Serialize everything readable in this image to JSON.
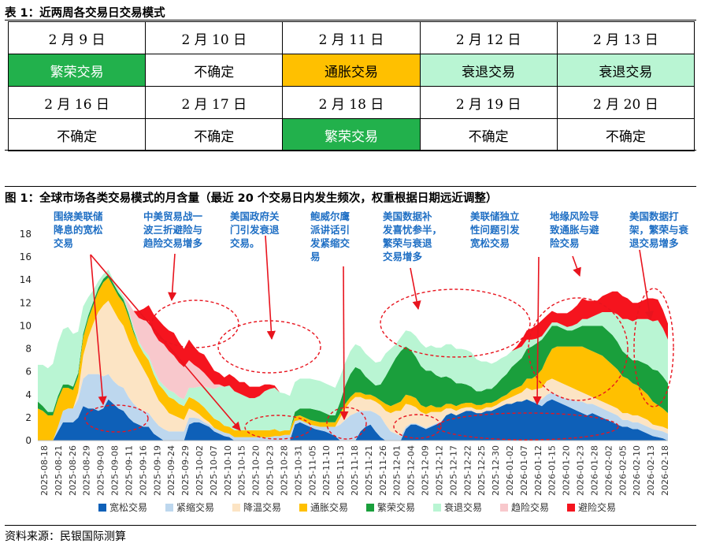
{
  "table": {
    "caption": "表 1：近两周各交易日交易模式",
    "rows": [
      [
        {
          "t": "2 月 9 日"
        },
        {
          "t": "2 月 10 日"
        },
        {
          "t": "2 月 11 日"
        },
        {
          "t": "2 月 12 日"
        },
        {
          "t": "2 月 13 日"
        }
      ],
      [
        {
          "t": "繁荣交易",
          "bg": "#22B14C",
          "fg": "#ffffff"
        },
        {
          "t": "不确定"
        },
        {
          "t": "通胀交易",
          "bg": "#FFC000"
        },
        {
          "t": "衰退交易",
          "bg": "#B9F5D3"
        },
        {
          "t": "衰退交易",
          "bg": "#B9F5D3"
        }
      ],
      [
        {
          "t": "2 月 16 日"
        },
        {
          "t": "2 月 17 日"
        },
        {
          "t": "2 月 18 日"
        },
        {
          "t": "2 月 19 日"
        },
        {
          "t": "2 月 20 日"
        }
      ],
      [
        {
          "t": "不确定"
        },
        {
          "t": "不确定"
        },
        {
          "t": "繁荣交易",
          "bg": "#22B14C",
          "fg": "#ffffff"
        },
        {
          "t": "不确定"
        },
        {
          "t": "不确定"
        }
      ]
    ]
  },
  "figure": {
    "caption": "图 1：全球市场各类交易模式的月含量（最近 20 个交易日内发生频次，权重根据日期远近调整）"
  },
  "source": "资料来源：民银国际测算",
  "chart_data": {
    "type": "area",
    "stacked": true,
    "ylim": [
      0,
      18
    ],
    "yticks": [
      0,
      2,
      4,
      6,
      8,
      10,
      12,
      14,
      16,
      18
    ],
    "x_ticks": [
      "2025-08-18",
      "2025-08-21",
      "2025-08-26",
      "2025-08-29",
      "2025-09-03",
      "2025-09-08",
      "2025-09-11",
      "2025-09-16",
      "2025-09-19",
      "2025-09-24",
      "2025-09-29",
      "2025-10-02",
      "2025-10-07",
      "2025-10-10",
      "2025-10-15",
      "2025-10-20",
      "2025-10-23",
      "2025-10-28",
      "2025-10-31",
      "2025-11-05",
      "2025-11-10",
      "2025-11-13",
      "2025-11-18",
      "2025-11-21",
      "2025-11-26",
      "2025-12-01",
      "2025-12-04",
      "2025-12-09",
      "2025-12-12",
      "2025-12-17",
      "2025-12-22",
      "2025-12-25",
      "2025-12-30",
      "2026-01-02",
      "2026-01-07",
      "2026-01-12",
      "2026-01-15",
      "2026-01-20",
      "2026-01-23",
      "2026-01-28",
      "2026-02-02",
      "2026-02-05",
      "2026-02-10",
      "2026-02-13",
      "2026-02-18"
    ],
    "legend_position": "bottom",
    "series": [
      {
        "name": "宽松交易",
        "color": "#0E60B8",
        "values": [
          0,
          0,
          0,
          0,
          0.8,
          1.6,
          1.6,
          1.6,
          2,
          3,
          2.8,
          2.8,
          2.6,
          2.8,
          3.6,
          3.2,
          2.8,
          2.6,
          2,
          1.6,
          1.4,
          1.2,
          1.2,
          0.6,
          0.3,
          0,
          0,
          0,
          0,
          0,
          1.4,
          1.6,
          1.6,
          1.4,
          1.2,
          0.8,
          0.6,
          0.4,
          0.3,
          0,
          0,
          0,
          0,
          0,
          0,
          0,
          0,
          0,
          0,
          0,
          0,
          1.4,
          1.6,
          1.4,
          1.2,
          1,
          0.9,
          0.8,
          0.6,
          0.4,
          0,
          0,
          0,
          0,
          0.8,
          1.2,
          1.4,
          0.8,
          0.3,
          0,
          0,
          0,
          0,
          1,
          1.4,
          1.4,
          1.2,
          1,
          1.2,
          1.4,
          1.6,
          2.2,
          2.4,
          2.2,
          2.4,
          2.6,
          2.6,
          2.4,
          2.4,
          2.6,
          2.6,
          2.8,
          3,
          3.2,
          3.2,
          3.4,
          3.4,
          3.6,
          3.4,
          3.2,
          3,
          3.4,
          3.6,
          3.4,
          3.2,
          3,
          2.8,
          2.6,
          2.4,
          2.2,
          2.4,
          2.2,
          2,
          1.8,
          1.6,
          1.4,
          1.2,
          1.2,
          1,
          1,
          0.8,
          0.6,
          0.4,
          0.3,
          0.2,
          0
        ]
      },
      {
        "name": "紧缩交易",
        "color": "#BDD7EE",
        "values": [
          0,
          0,
          0,
          0,
          0.4,
          1,
          1.2,
          1.2,
          1.6,
          2.4,
          3,
          3,
          3.2,
          2.8,
          2.2,
          2,
          2,
          2,
          1.8,
          1.6,
          1.4,
          1.4,
          1.2,
          1.2,
          1,
          1,
          0.8,
          0.8,
          0.8,
          0.8,
          0.6,
          0.4,
          0.3,
          0.2,
          0.2,
          0.3,
          0.3,
          0.3,
          0.3,
          0.3,
          0.3,
          0.3,
          0.3,
          0.3,
          0.3,
          0.3,
          0.3,
          0.4,
          0.4,
          0.5,
          0.5,
          0.3,
          0.2,
          0.2,
          0.2,
          0.3,
          0.3,
          0.4,
          0.6,
          0.8,
          1.4,
          1.8,
          2.2,
          2.4,
          1.8,
          1.4,
          1.2,
          1.6,
          1.8,
          1.4,
          0.8,
          0.6,
          0.4,
          0.2,
          0.1,
          0.1,
          0.1,
          0.1,
          0.1,
          0.1,
          0.1,
          0,
          0,
          0,
          0,
          0,
          0,
          0,
          0,
          0,
          0,
          0,
          0,
          0,
          0,
          0,
          0,
          0,
          0,
          0.3,
          0.6,
          0.6,
          0.6,
          0.6,
          0.6,
          0.6,
          0.8,
          0.8,
          1,
          1,
          0.8,
          0.8,
          0.8,
          0.8,
          0.8,
          0.8,
          0.6,
          0.6,
          0.6,
          0.6,
          0.6,
          0.6,
          0.6,
          0.6,
          0.6,
          0.6,
          0.8,
          0.6
        ]
      },
      {
        "name": "降温交易",
        "color": "#FCE4C4",
        "values": [
          0,
          0,
          0,
          0,
          0,
          0,
          0,
          0,
          0.6,
          2,
          3.2,
          4.4,
          5.4,
          6.2,
          6.4,
          6.2,
          5.8,
          5.4,
          5,
          4.6,
          4.2,
          3.6,
          3,
          2.6,
          2.2,
          2,
          1.6,
          1.4,
          1.2,
          1,
          0.8,
          0.6,
          0.4,
          0.3,
          0.2,
          0,
          0,
          0,
          0,
          0,
          0,
          0,
          0,
          0,
          0,
          0,
          0,
          0,
          0,
          0,
          0,
          0,
          0,
          0,
          0,
          0,
          0,
          0,
          0,
          0,
          0.6,
          1,
          1.2,
          1.4,
          1.2,
          1,
          1,
          1,
          1,
          1.2,
          1.6,
          2,
          2.2,
          2,
          1.6,
          1.4,
          1.2,
          1.2,
          1.2,
          1,
          0.8,
          0.6,
          0.4,
          0.4,
          0.4,
          0.3,
          0.3,
          0.3,
          0.3,
          0.3,
          0.3,
          0.3,
          0.4,
          0.4,
          0.6,
          0.6,
          0.8,
          1,
          1,
          1,
          1,
          1.2,
          1.2,
          1.2,
          1.2,
          1.2,
          1,
          1,
          0.8,
          0.8,
          0.6,
          0.6,
          0.6,
          0.6,
          0.6,
          0.6,
          0.6,
          0.6,
          0.6,
          0.6,
          0.6,
          0.6,
          0.4,
          0.4,
          0.4,
          0.4
        ]
      },
      {
        "name": "通胀交易",
        "color": "#FFC000",
        "values": [
          2.8,
          2.6,
          2.2,
          2.2,
          2.4,
          2,
          1.8,
          1.6,
          1.4,
          1.6,
          1.6,
          1.6,
          1.8,
          2,
          2,
          2,
          2,
          2,
          2,
          1.6,
          1.4,
          1.4,
          1.6,
          1.4,
          1.4,
          1.4,
          1.4,
          1.4,
          1.2,
          1.2,
          1,
          1,
          1,
          1,
          0.8,
          0.8,
          0.8,
          0.6,
          0.6,
          0.6,
          0.6,
          0.6,
          0.6,
          0.6,
          0.6,
          0.6,
          0.6,
          0.6,
          0.4,
          0.4,
          0.4,
          0.4,
          0.4,
          0.4,
          0.4,
          0.4,
          0.4,
          0.4,
          0.4,
          0.4,
          0.4,
          0.4,
          0.4,
          0.4,
          0.4,
          0.4,
          0.4,
          0.4,
          0.4,
          0.6,
          0.6,
          0.6,
          0.8,
          0.8,
          0.8,
          0.8,
          0.6,
          0.6,
          0.6,
          0.4,
          0.4,
          0.4,
          0.4,
          0.4,
          0.4,
          0.4,
          0.4,
          0.4,
          0.4,
          0.4,
          0.4,
          0.4,
          0.4,
          0.4,
          0.6,
          0.6,
          0.6,
          0.8,
          1,
          1.2,
          1.6,
          2,
          2.6,
          3,
          3.2,
          3.4,
          3.6,
          3.8,
          4,
          4,
          4,
          4,
          4,
          3.8,
          3.6,
          3.4,
          3.2,
          3,
          2.8,
          2.6,
          2.4,
          2.2,
          2,
          1.8,
          1.6,
          1.4,
          1.2,
          1
        ]
      },
      {
        "name": "繁荣交易",
        "color": "#1A9F3C",
        "values": [
          0.6,
          0.4,
          0.3,
          0.3,
          0.3,
          0.3,
          0.3,
          0.3,
          0.3,
          0.3,
          0.3,
          0.3,
          0.3,
          0.3,
          0.3,
          0.3,
          0.3,
          0.3,
          0.3,
          0.2,
          0,
          0,
          0,
          0,
          0,
          0,
          0,
          0,
          0,
          0,
          0,
          0,
          0,
          0,
          0,
          0,
          0,
          0,
          0,
          0,
          0,
          0,
          0,
          0,
          0,
          0,
          0,
          0,
          0,
          0,
          0,
          0.4,
          0.6,
          0.8,
          1,
          1,
          1,
          0.8,
          0.6,
          0.6,
          1,
          1.6,
          2,
          2.2,
          2,
          1.6,
          1.2,
          1,
          1.4,
          2.4,
          3.4,
          4,
          4.4,
          4.2,
          4,
          3.6,
          3.4,
          3.2,
          3,
          2.8,
          2.6,
          2.4,
          2.2,
          2,
          1.8,
          1.6,
          1.4,
          1.2,
          1.2,
          1.2,
          1.2,
          1.4,
          1.6,
          1.8,
          2,
          2.2,
          2.4,
          2.6,
          2.8,
          2.8,
          2.6,
          2.2,
          2,
          1.8,
          1.6,
          1.4,
          1.4,
          1.6,
          1.8,
          2,
          2.2,
          2.4,
          2.6,
          2.6,
          2.6,
          2.4,
          2.2,
          2,
          2,
          2.2,
          2.4,
          2.6,
          2.8,
          3,
          2.8,
          2.6,
          2.4,
          2.2
        ]
      },
      {
        "name": "衰退交易",
        "color": "#B9F5D3",
        "values": [
          3.2,
          3.6,
          3.8,
          4.2,
          4.6,
          4.8,
          5,
          4.6,
          3.6,
          2.4,
          1.6,
          1,
          0.6,
          0.4,
          0.4,
          0.3,
          0.3,
          0.3,
          0.3,
          0.3,
          0.3,
          0.3,
          0.4,
          0.4,
          0.4,
          0.4,
          0.6,
          0.6,
          0.6,
          0.6,
          0.8,
          1,
          1.4,
          1.8,
          2.2,
          2.6,
          3,
          3.4,
          3.6,
          3.4,
          3.2,
          3,
          2.8,
          2.8,
          3,
          3.4,
          3.6,
          3.6,
          3.4,
          3.2,
          3,
          2.6,
          2.6,
          2.6,
          2.6,
          2.6,
          2.6,
          2.6,
          2.6,
          2.4,
          2.2,
          2,
          2,
          2,
          2,
          2,
          2,
          2,
          2,
          2,
          1.6,
          1.2,
          1.2,
          1.4,
          1.6,
          1.8,
          2,
          2,
          2.2,
          2.4,
          2.6,
          2.8,
          3,
          3,
          3,
          3,
          3,
          2.8,
          2.6,
          2.4,
          2.2,
          2,
          1.8,
          1.6,
          1.4,
          1.2,
          1,
          0.8,
          0.6,
          0.4,
          0.3,
          0.3,
          0.3,
          0.3,
          0.3,
          0.3,
          0.4,
          0.4,
          0.6,
          0.6,
          0.8,
          1,
          1.2,
          1.6,
          2,
          2.4,
          2.8,
          3.2,
          3.4,
          3.6,
          3.8,
          4,
          4.2,
          4.4,
          4.2,
          3.8,
          3.4,
          3
        ]
      },
      {
        "name": "趋险交易",
        "color": "#F8C8CC",
        "values": [
          0,
          0,
          0,
          0,
          0,
          0,
          0,
          0,
          0,
          0,
          0,
          0,
          0,
          0,
          0,
          0,
          0,
          0,
          0.6,
          1.4,
          2,
          2.6,
          3,
          3.2,
          3.4,
          3.6,
          3.4,
          3.2,
          3,
          2.8,
          2.4,
          2,
          1.6,
          1.2,
          0.8,
          0.4,
          0.2,
          0,
          0,
          0,
          0,
          0,
          0,
          0,
          0,
          0,
          0,
          0,
          0,
          0,
          0,
          0,
          0,
          0,
          0,
          0,
          0,
          0,
          0,
          0,
          0,
          0,
          0,
          0,
          0,
          0,
          0,
          0,
          0,
          0,
          0,
          0,
          0,
          0,
          0,
          0,
          0,
          0,
          0,
          0,
          0,
          0,
          0,
          0,
          0,
          0,
          0,
          0,
          0,
          0,
          0,
          0,
          0,
          0,
          0,
          0,
          0,
          0,
          0,
          0,
          0,
          0,
          0,
          0,
          0,
          0,
          0,
          0,
          0,
          0,
          0,
          0,
          0,
          0,
          0,
          0,
          0,
          0,
          0,
          0,
          0,
          0,
          0,
          0,
          0,
          0,
          0,
          0,
          0,
          0
        ]
      },
      {
        "name": "避险交易",
        "color": "#F5141E",
        "values": [
          0,
          0,
          0,
          0,
          0,
          0,
          0,
          0,
          0,
          0,
          0,
          0,
          0,
          0,
          0,
          0,
          0,
          0,
          0,
          0,
          0.6,
          1,
          1.4,
          1.6,
          1.8,
          1.6,
          1.8,
          2,
          1.8,
          1.6,
          1.8,
          1.6,
          1.4,
          1.6,
          1.4,
          1.2,
          1,
          0.8,
          1,
          1.2,
          1,
          1.2,
          1,
          1,
          0.8,
          0.6,
          0.4,
          0.2,
          0,
          0,
          0,
          0,
          0,
          0,
          0,
          0,
          0,
          0,
          0,
          0,
          0,
          0,
          0,
          0,
          0,
          0,
          0,
          0,
          0,
          0,
          0,
          0,
          0,
          0,
          0,
          0,
          0,
          0,
          0,
          0,
          0,
          0,
          0,
          0,
          0,
          0,
          0,
          0,
          0,
          0,
          0,
          0,
          0,
          0,
          0,
          0.2,
          0.6,
          0.8,
          1,
          1.2,
          1.4,
          1.2,
          1,
          0.8,
          1,
          1.2,
          1.4,
          1.6,
          1.8,
          1.6,
          1.4,
          1.2,
          1.4,
          1.6,
          1.8,
          2,
          2,
          1.8,
          1.6,
          1.4,
          1.6,
          1.8,
          2,
          1.8,
          1.6,
          1.4,
          1.2,
          1
        ]
      }
    ],
    "annotations": [
      {
        "text": "围绕美联储降息的宽松交易",
        "lines": [
          "围绕美联储",
          "降息的宽松",
          "交易"
        ]
      },
      {
        "text": "中美贸易战一波三折避险与趋险交易增多",
        "lines": [
          "中美贸易战一",
          "波三折避险与",
          "趋险交易增多"
        ]
      },
      {
        "text": "美国政府关门引发衰退交易。",
        "lines": [
          "美国政府关",
          "门引发衰退",
          "交易。"
        ]
      },
      {
        "text": "鲍威尔鹰派讲话引发紧缩交易",
        "lines": [
          "鲍威尔鹰",
          "派讲话引",
          "发紧缩交",
          "易"
        ]
      },
      {
        "text": "美国数据补发喜忧参半，繁荣与衰退交易增多",
        "lines": [
          "美国数据补",
          "发喜忧参半，",
          "繁荣与衰退",
          "交易增多"
        ]
      },
      {
        "text": "美联储独立性问题引发宽松交易",
        "lines": [
          "美联储独立",
          "性问题引发",
          "宽松交易"
        ]
      },
      {
        "text": "地缘风险导致通胀与避险交易",
        "lines": [
          "地缘风险导",
          "致通胀与避",
          "险交易"
        ]
      },
      {
        "text": "美国数据打架，繁荣与衰退交易增多",
        "lines": [
          "美国数据打",
          "架，繁荣与衰",
          "退交易增多"
        ]
      }
    ]
  }
}
